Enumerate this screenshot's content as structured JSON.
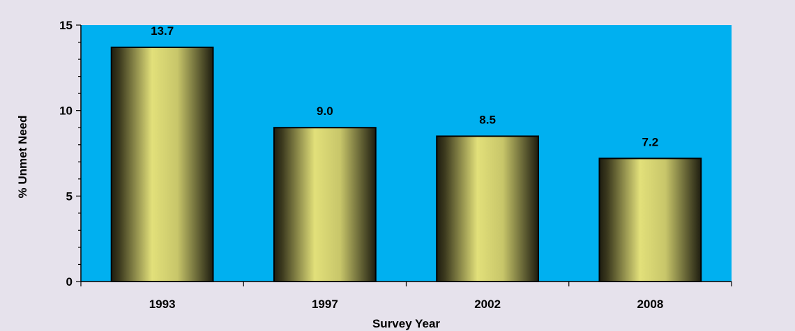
{
  "chart_data": {
    "type": "bar",
    "title": "",
    "xlabel": "Survey Year",
    "ylabel": "% Unmet Need",
    "categories": [
      "1993",
      "1997",
      "2002",
      "2008"
    ],
    "values": [
      13.7,
      9.0,
      8.5,
      7.2
    ],
    "data_labels": [
      "13.7",
      "9.0",
      "8.5",
      "7.2"
    ],
    "ylim": [
      0,
      15
    ],
    "yticks": [
      0,
      5,
      10,
      15
    ],
    "ytick_labels": [
      "0",
      "5",
      "10",
      "15"
    ],
    "minor_tick_step": 1,
    "grid": false,
    "legend": "none"
  },
  "colors": {
    "page_background": "#e6e2ec",
    "plot_background": "#00b0f0",
    "bar_highlight": "#e2e07a",
    "bar_shadow": "#1e1d10",
    "bar_outline": "#000000",
    "axis": "#000000"
  }
}
